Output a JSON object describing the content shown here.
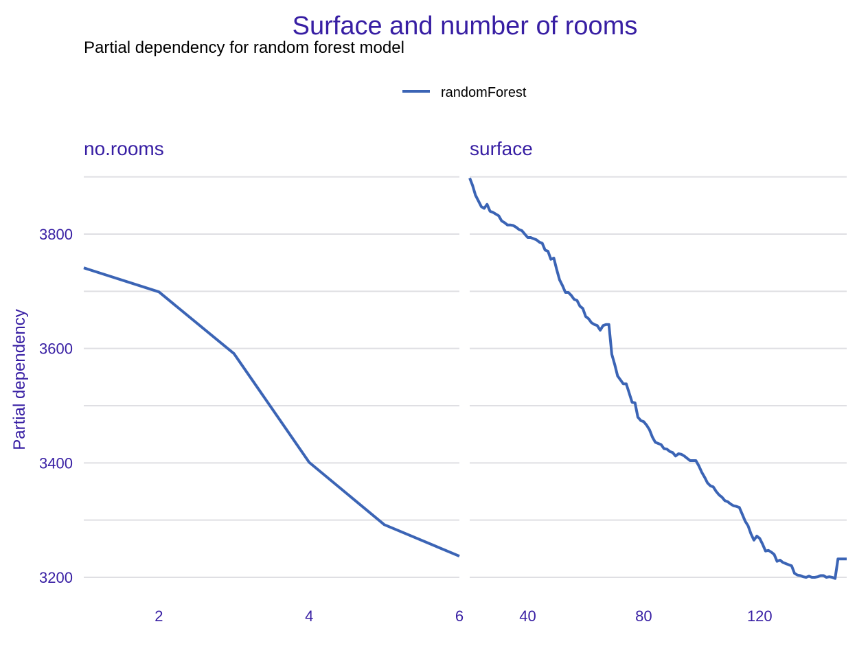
{
  "chart_data": {
    "type": "line",
    "title": "Surface and number of rooms",
    "subtitle": "Partial dependency for random forest model",
    "ylabel": "Partial dependency",
    "ylim": [
      3180,
      3900
    ],
    "y_ticks": [
      3200,
      3400,
      3600,
      3800
    ],
    "y_tick_labels": [
      "3200",
      "3400",
      "3600",
      "3800"
    ],
    "grid": true,
    "legend_position": "top",
    "legend": [
      {
        "name": "randomForest",
        "color": "#3b64b5"
      }
    ],
    "colors": {
      "title": "#371ea3",
      "text": "#371ea3",
      "subtitle": "#000000",
      "series": "#3b64b5",
      "grid": "#dfdfe3"
    },
    "panels": [
      {
        "title": "no.rooms",
        "xlim": [
          1,
          6
        ],
        "x_ticks": [
          2,
          4,
          6
        ],
        "x_tick_labels": [
          "2",
          "4",
          "6"
        ],
        "series": [
          {
            "name": "randomForest",
            "x": [
              1,
              2,
              3,
              4,
              5,
              6
            ],
            "y": [
              3741,
              3699,
              3591,
              3401,
              3292,
              3237
            ]
          }
        ]
      },
      {
        "title": "surface",
        "xlim": [
          20,
          150
        ],
        "x_ticks": [
          40,
          80,
          120
        ],
        "x_tick_labels": [
          "40",
          "80",
          "120"
        ],
        "series": [
          {
            "name": "randomForest",
            "x": [
              20,
              21,
              22,
              23,
              24,
              25,
              26,
              27,
              28,
              29,
              30,
              31,
              32,
              33,
              34,
              35,
              36,
              37,
              38,
              39,
              40,
              41,
              42,
              43,
              44,
              45,
              46,
              47,
              48,
              49,
              50,
              51,
              52,
              53,
              54,
              55,
              56,
              57,
              58,
              59,
              60,
              61,
              62,
              63,
              64,
              65,
              66,
              67,
              68,
              69,
              70,
              71,
              72,
              73,
              74,
              75,
              76,
              77,
              78,
              79,
              80,
              81,
              82,
              83,
              84,
              85,
              86,
              87,
              88,
              89,
              90,
              91,
              92,
              93,
              94,
              95,
              96,
              97,
              98,
              99,
              100,
              101,
              102,
              103,
              104,
              105,
              106,
              107,
              108,
              109,
              110,
              111,
              112,
              113,
              114,
              115,
              116,
              117,
              118,
              119,
              120,
              121,
              122,
              123,
              124,
              125,
              126,
              127,
              128,
              129,
              130,
              131,
              132,
              133,
              134,
              135,
              136,
              137,
              138,
              139,
              140,
              141,
              142,
              143,
              144,
              145,
              146,
              147,
              148,
              149,
              150
            ],
            "y": [
              3898,
              3885,
              3868,
              3858,
              3848,
              3845,
              3852,
              3840,
              3838,
              3835,
              3832,
              3823,
              3820,
              3816,
              3816,
              3815,
              3812,
              3808,
              3806,
              3800,
              3794,
              3794,
              3792,
              3790,
              3786,
              3784,
              3772,
              3770,
              3756,
              3758,
              3738,
              3720,
              3710,
              3698,
              3698,
              3693,
              3686,
              3684,
              3674,
              3670,
              3656,
              3652,
              3645,
              3642,
              3640,
              3632,
              3640,
              3642,
              3642,
              3590,
              3572,
              3552,
              3545,
              3538,
              3538,
              3522,
              3506,
              3505,
              3480,
              3474,
              3472,
              3466,
              3458,
              3445,
              3436,
              3434,
              3432,
              3425,
              3424,
              3420,
              3418,
              3412,
              3416,
              3415,
              3412,
              3408,
              3404,
              3404,
              3404,
              3395,
              3384,
              3375,
              3365,
              3360,
              3358,
              3350,
              3344,
              3340,
              3334,
              3332,
              3328,
              3325,
              3324,
              3322,
              3310,
              3298,
              3290,
              3276,
              3265,
              3272,
              3268,
              3258,
              3246,
              3247,
              3244,
              3240,
              3228,
              3230,
              3226,
              3224,
              3222,
              3220,
              3207,
              3204,
              3203,
              3201,
              3200,
              3202,
              3200,
              3200,
              3201,
              3203,
              3203,
              3200,
              3201,
              3200,
              3198,
              3232,
              3232,
              3232,
              3232
            ]
          }
        ]
      }
    ]
  }
}
